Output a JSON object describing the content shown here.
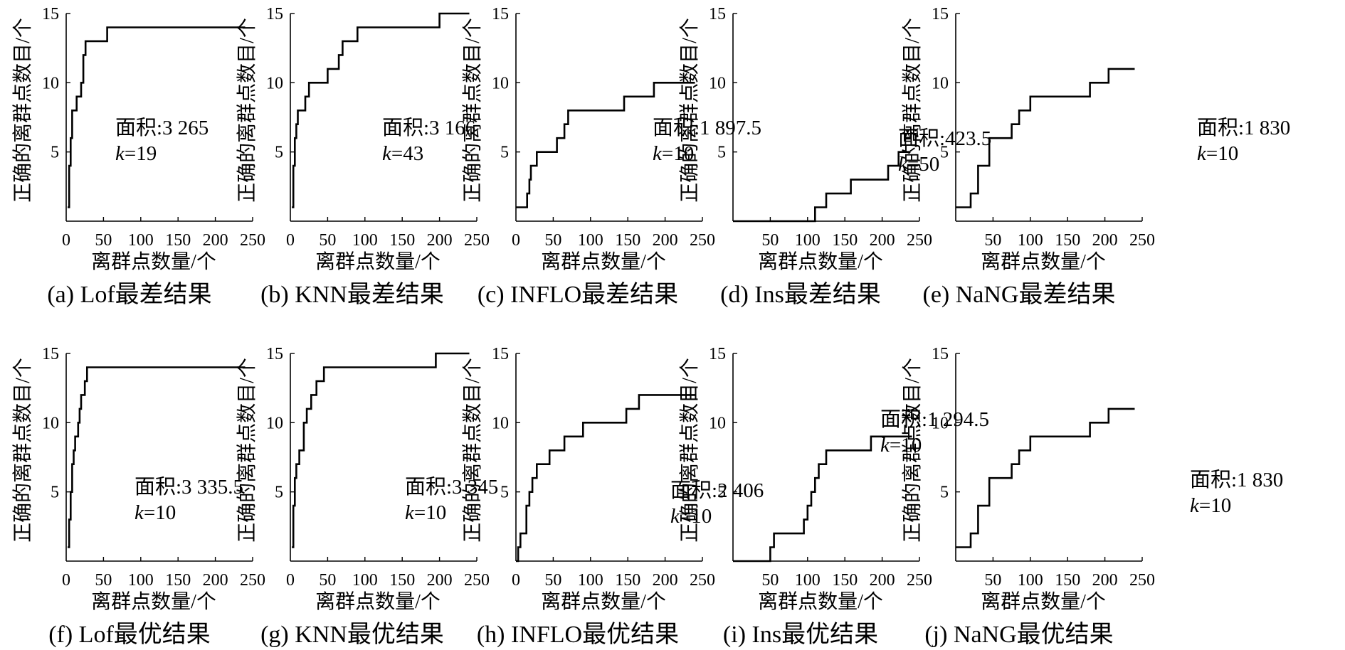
{
  "figure": {
    "x_axis_label": "离群点数量/个",
    "y_axis_label": "正确的离群点数目/个"
  },
  "chart_data": [
    {
      "id": "a",
      "type": "line",
      "caption": "(a) Lof最差结果",
      "area_text": "面积:3 265",
      "k_text": "k=19",
      "xlabel": "离群点数量/个",
      "ylabel": "正确的离群点数目/个",
      "xlim": [
        0,
        250
      ],
      "ylim": [
        0,
        15
      ],
      "xticks": [
        "0",
        "50",
        "100",
        "150",
        "200",
        "250"
      ],
      "yticks": [
        "5",
        "10",
        "15"
      ],
      "series": [
        {
          "x": [
            2,
            4,
            6,
            8,
            11,
            14,
            17,
            20,
            23,
            26,
            29,
            32,
            35,
            55,
            240
          ],
          "y": [
            1,
            4,
            6,
            8,
            8,
            9,
            9,
            10,
            12,
            13,
            13,
            13,
            13,
            14,
            14
          ]
        }
      ]
    },
    {
      "id": "b",
      "type": "line",
      "caption": "(b) KNN最差结果",
      "area_text": "面积:3 166",
      "k_text": "k=43",
      "xlabel": "离群点数量/个",
      "ylabel": "正确的离群点数目/个",
      "xlim": [
        0,
        250
      ],
      "ylim": [
        0,
        15
      ],
      "xticks": [
        "0",
        "50",
        "100",
        "150",
        "200",
        "250"
      ],
      "yticks": [
        "5",
        "10",
        "15"
      ],
      "series": [
        {
          "x": [
            2,
            4,
            6,
            8,
            10,
            15,
            20,
            25,
            30,
            35,
            40,
            45,
            50,
            55,
            60,
            65,
            70,
            80,
            90,
            95,
            190,
            200,
            240
          ],
          "y": [
            1,
            4,
            6,
            7,
            8,
            8,
            9,
            10,
            10,
            10,
            10,
            10,
            11,
            11,
            11,
            12,
            13,
            13,
            14,
            14,
            14,
            15,
            15
          ]
        }
      ]
    },
    {
      "id": "c",
      "type": "line",
      "caption": "(c) INFLO最差结果",
      "area_text": "面积:1 897.5",
      "k_text": "k=10",
      "xlabel": "离群点数量/个",
      "ylabel": "正确的离群点数目/个",
      "xlim": [
        0,
        250
      ],
      "ylim": [
        0,
        15
      ],
      "xticks": [
        "0",
        "50",
        "100",
        "150",
        "200",
        "250"
      ],
      "yticks": [
        "5",
        "10",
        "15"
      ],
      "series": [
        {
          "x": [
            0,
            10,
            15,
            18,
            20,
            24,
            28,
            45,
            55,
            62,
            65,
            68,
            70,
            140,
            145,
            180,
            185,
            240
          ],
          "y": [
            1,
            1,
            2,
            3,
            4,
            4,
            5,
            5,
            6,
            6,
            7,
            7,
            8,
            8,
            9,
            9,
            10,
            10
          ]
        }
      ]
    },
    {
      "id": "d",
      "type": "line",
      "caption": "(d) Ins最差结果",
      "area_text": "面积:423.5",
      "k_text": "k=50",
      "xlabel": "离群点数量/个",
      "ylabel": "正确的离群点数目/个",
      "xlim": [
        0,
        250
      ],
      "ylim": [
        0,
        15
      ],
      "xticks": [
        "50",
        "100",
        "150",
        "200",
        "250"
      ],
      "yticks": [
        "5",
        "10",
        "15"
      ],
      "series": [
        {
          "x": [
            0,
            105,
            110,
            118,
            125,
            150,
            158,
            180,
            200,
            208,
            215,
            222,
            238
          ],
          "y": [
            0,
            0,
            1,
            1,
            2,
            2,
            3,
            3,
            3,
            4,
            4,
            5,
            5
          ]
        }
      ]
    },
    {
      "id": "e",
      "type": "line",
      "caption": "(e) NaNG最差结果",
      "area_text": "面积:1 830",
      "k_text": "k=10",
      "xlabel": "离群点数量/个",
      "ylabel": "正确的离群点数目/个",
      "xlim": [
        0,
        250
      ],
      "ylim": [
        0,
        15
      ],
      "xticks": [
        "50",
        "100",
        "150",
        "200",
        "250"
      ],
      "yticks": [
        "5",
        "10",
        "15"
      ],
      "series": [
        {
          "x": [
            0,
            15,
            20,
            25,
            30,
            40,
            45,
            70,
            75,
            80,
            85,
            95,
            100,
            175,
            180,
            200,
            205,
            240
          ],
          "y": [
            1,
            1,
            2,
            2,
            4,
            4,
            6,
            6,
            7,
            7,
            8,
            8,
            9,
            9,
            10,
            10,
            11,
            11
          ]
        }
      ]
    },
    {
      "id": "f",
      "type": "line",
      "caption": "(f) Lof最优结果",
      "area_text": "面积:3 335.5",
      "k_text": "k=10",
      "xlabel": "离群点数量/个",
      "ylabel": "正确的离群点数目/个",
      "xlim": [
        0,
        250
      ],
      "ylim": [
        0,
        15
      ],
      "xticks": [
        "0",
        "50",
        "100",
        "150",
        "200",
        "250"
      ],
      "yticks": [
        "5",
        "10",
        "15"
      ],
      "series": [
        {
          "x": [
            2,
            4,
            6,
            8,
            10,
            12,
            14,
            16,
            18,
            20,
            22,
            25,
            28,
            240
          ],
          "y": [
            1,
            3,
            5,
            7,
            8,
            9,
            9,
            10,
            11,
            12,
            12,
            13,
            14,
            14
          ]
        }
      ]
    },
    {
      "id": "g",
      "type": "line",
      "caption": "(g) KNN最优结果",
      "area_text": "面积:3 345",
      "k_text": "k=10",
      "xlabel": "离群点数量/个",
      "ylabel": "正确的离群点数目/个",
      "xlim": [
        0,
        250
      ],
      "ylim": [
        0,
        15
      ],
      "xticks": [
        "0",
        "50",
        "100",
        "150",
        "200",
        "250"
      ],
      "yticks": [
        "5",
        "10",
        "15"
      ],
      "series": [
        {
          "x": [
            2,
            4,
            6,
            8,
            12,
            15,
            18,
            22,
            25,
            28,
            32,
            35,
            38,
            45,
            190,
            195,
            240
          ],
          "y": [
            1,
            4,
            6,
            7,
            8,
            8,
            10,
            11,
            11,
            12,
            12,
            13,
            13,
            14,
            14,
            15,
            15
          ]
        }
      ]
    },
    {
      "id": "h",
      "type": "line",
      "caption": "(h) INFLO最优结果",
      "area_text": "面积:2 406",
      "k_text": "k=10",
      "xlabel": "离群点数量/个",
      "ylabel": "正确的离群点数目/个",
      "xlim": [
        0,
        250
      ],
      "ylim": [
        0,
        15
      ],
      "xticks": [
        "0",
        "50",
        "100",
        "150",
        "200",
        "250"
      ],
      "yticks": [
        "5",
        "10",
        "15"
      ],
      "series": [
        {
          "x": [
            0,
            3,
            6,
            10,
            14,
            18,
            22,
            28,
            35,
            45,
            55,
            65,
            80,
            90,
            140,
            148,
            165,
            240
          ],
          "y": [
            0,
            1,
            2,
            2,
            4,
            5,
            6,
            7,
            7,
            8,
            8,
            9,
            9,
            10,
            10,
            11,
            12,
            12
          ]
        }
      ]
    },
    {
      "id": "i",
      "type": "line",
      "caption": "(i) Ins最优结果",
      "area_text": "面积:1 294.5",
      "k_text": "k=10",
      "xlabel": "离群点数量/个",
      "ylabel": "正确的离群点数目/个",
      "xlim": [
        0,
        250
      ],
      "ylim": [
        0,
        15
      ],
      "xticks": [
        "50",
        "100",
        "150",
        "200",
        "250"
      ],
      "yticks": [
        "5",
        "10",
        "15"
      ],
      "series": [
        {
          "x": [
            0,
            45,
            50,
            55,
            85,
            95,
            100,
            105,
            110,
            115,
            120,
            125,
            130,
            175,
            185,
            240
          ],
          "y": [
            0,
            0,
            1,
            2,
            2,
            3,
            4,
            5,
            6,
            7,
            7,
            8,
            8,
            8,
            9,
            9
          ]
        }
      ]
    },
    {
      "id": "j",
      "type": "line",
      "caption": "(j) NaNG最优结果",
      "area_text": "面积:1 830",
      "k_text": "k=10",
      "xlabel": "离群点数量/个",
      "ylabel": "正确的离群点数目/个",
      "xlim": [
        0,
        250
      ],
      "ylim": [
        0,
        15
      ],
      "xticks": [
        "50",
        "100",
        "150",
        "200",
        "250"
      ],
      "yticks": [
        "5",
        "10",
        "15"
      ],
      "series": [
        {
          "x": [
            0,
            15,
            20,
            25,
            30,
            40,
            45,
            70,
            75,
            80,
            85,
            95,
            100,
            175,
            180,
            200,
            205,
            240
          ],
          "y": [
            1,
            1,
            2,
            2,
            4,
            4,
            6,
            6,
            7,
            7,
            8,
            8,
            9,
            9,
            10,
            10,
            11,
            11
          ]
        }
      ]
    }
  ]
}
